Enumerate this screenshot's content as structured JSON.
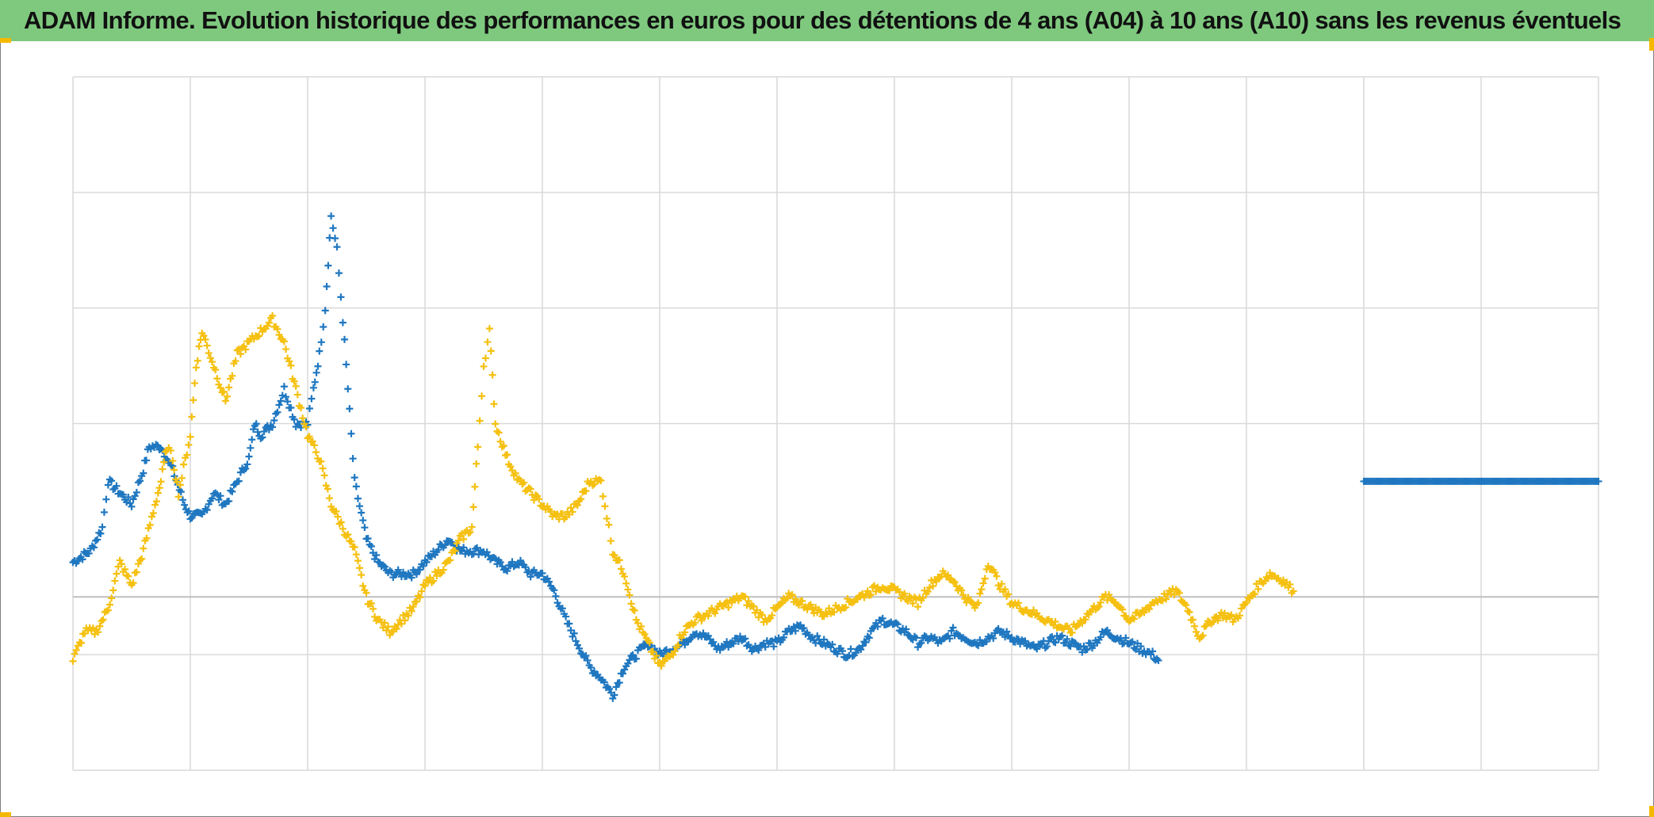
{
  "title": "ADAM Informe. Evolution historique des performances en euros pour des détentions de 4 ans (A04) à 10 ans (A10) sans les revenus éventuels",
  "colors": {
    "title_bar": "#7fc97f",
    "series_blue": "#1f77c0",
    "series_gold": "#f5c010",
    "grid": "#d9d9d9",
    "axis": "#bfbfbf"
  },
  "chart_data": {
    "type": "scatter",
    "title": "",
    "xlabel": "",
    "ylabel": "",
    "marker": "plus",
    "x_divisions": 13,
    "xlim": [
      0,
      13
    ],
    "ylim": [
      -1.5,
      4.5
    ],
    "y_gridlines": [
      -1.5,
      -0.5,
      0,
      1.5,
      2.5,
      3.5,
      4.5
    ],
    "grid": true,
    "legend": "none",
    "tick_labels": "none",
    "series": [
      {
        "color": "#1f77c0",
        "points": [
          [
            0.0,
            0.3
          ],
          [
            0.15,
            0.4
          ],
          [
            0.25,
            0.6
          ],
          [
            0.3,
            1.0
          ],
          [
            0.4,
            0.9
          ],
          [
            0.5,
            0.8
          ],
          [
            0.6,
            1.1
          ],
          [
            0.65,
            1.3
          ],
          [
            0.75,
            1.3
          ],
          [
            0.85,
            1.1
          ],
          [
            0.95,
            0.8
          ],
          [
            1.0,
            0.7
          ],
          [
            1.1,
            0.7
          ],
          [
            1.2,
            0.9
          ],
          [
            1.3,
            0.8
          ],
          [
            1.4,
            1.0
          ],
          [
            1.5,
            1.2
          ],
          [
            1.55,
            1.5
          ],
          [
            1.6,
            1.4
          ],
          [
            1.7,
            1.5
          ],
          [
            1.8,
            1.8
          ],
          [
            1.9,
            1.5
          ],
          [
            2.0,
            1.5
          ],
          [
            2.05,
            1.8
          ],
          [
            2.1,
            2.1
          ],
          [
            2.15,
            2.5
          ],
          [
            2.2,
            3.3
          ],
          [
            2.25,
            3.0
          ],
          [
            2.3,
            2.4
          ],
          [
            2.4,
            1.0
          ],
          [
            2.5,
            0.5
          ],
          [
            2.6,
            0.3
          ],
          [
            2.7,
            0.2
          ],
          [
            2.8,
            0.2
          ],
          [
            2.9,
            0.2
          ],
          [
            3.0,
            0.3
          ],
          [
            3.1,
            0.4
          ],
          [
            3.2,
            0.5
          ],
          [
            3.3,
            0.4
          ],
          [
            3.4,
            0.4
          ],
          [
            3.5,
            0.4
          ],
          [
            3.6,
            0.3
          ],
          [
            3.7,
            0.25
          ],
          [
            3.8,
            0.3
          ],
          [
            3.9,
            0.2
          ],
          [
            4.0,
            0.2
          ],
          [
            4.1,
            0.05
          ],
          [
            4.2,
            -0.2
          ],
          [
            4.3,
            -0.4
          ],
          [
            4.4,
            -0.6
          ],
          [
            4.5,
            -0.7
          ],
          [
            4.6,
            -0.85
          ],
          [
            4.7,
            -0.6
          ],
          [
            4.8,
            -0.5
          ],
          [
            4.9,
            -0.4
          ],
          [
            5.0,
            -0.5
          ],
          [
            5.1,
            -0.45
          ],
          [
            5.2,
            -0.4
          ],
          [
            5.3,
            -0.3
          ],
          [
            5.4,
            -0.35
          ],
          [
            5.5,
            -0.45
          ],
          [
            5.6,
            -0.4
          ],
          [
            5.7,
            -0.35
          ],
          [
            5.8,
            -0.45
          ],
          [
            5.9,
            -0.4
          ],
          [
            6.0,
            -0.4
          ],
          [
            6.1,
            -0.3
          ],
          [
            6.2,
            -0.25
          ],
          [
            6.3,
            -0.35
          ],
          [
            6.4,
            -0.4
          ],
          [
            6.5,
            -0.45
          ],
          [
            6.6,
            -0.5
          ],
          [
            6.7,
            -0.45
          ],
          [
            6.8,
            -0.3
          ],
          [
            6.9,
            -0.2
          ],
          [
            7.0,
            -0.25
          ],
          [
            7.1,
            -0.3
          ],
          [
            7.2,
            -0.4
          ],
          [
            7.3,
            -0.35
          ],
          [
            7.4,
            -0.4
          ],
          [
            7.5,
            -0.3
          ],
          [
            7.6,
            -0.35
          ],
          [
            7.7,
            -0.4
          ],
          [
            7.8,
            -0.35
          ],
          [
            7.9,
            -0.3
          ],
          [
            8.0,
            -0.35
          ],
          [
            8.1,
            -0.4
          ],
          [
            8.2,
            -0.45
          ],
          [
            8.3,
            -0.4
          ],
          [
            8.4,
            -0.35
          ],
          [
            8.5,
            -0.4
          ],
          [
            8.6,
            -0.45
          ],
          [
            8.7,
            -0.4
          ],
          [
            8.8,
            -0.3
          ],
          [
            8.9,
            -0.35
          ],
          [
            9.0,
            -0.4
          ],
          [
            9.1,
            -0.45
          ],
          [
            9.2,
            -0.5
          ],
          [
            9.25,
            -0.55
          ]
        ]
      },
      {
        "color": "#f5c010",
        "points": [
          [
            0.0,
            -0.55
          ],
          [
            0.1,
            -0.3
          ],
          [
            0.2,
            -0.3
          ],
          [
            0.3,
            -0.1
          ],
          [
            0.4,
            0.3
          ],
          [
            0.5,
            0.1
          ],
          [
            0.6,
            0.4
          ],
          [
            0.7,
            0.8
          ],
          [
            0.75,
            1.0
          ],
          [
            0.8,
            1.3
          ],
          [
            0.85,
            1.2
          ],
          [
            0.9,
            0.9
          ],
          [
            1.0,
            1.4
          ],
          [
            1.05,
            2.0
          ],
          [
            1.1,
            2.3
          ],
          [
            1.2,
            2.0
          ],
          [
            1.3,
            1.7
          ],
          [
            1.4,
            2.1
          ],
          [
            1.5,
            2.2
          ],
          [
            1.6,
            2.3
          ],
          [
            1.7,
            2.4
          ],
          [
            1.8,
            2.2
          ],
          [
            1.9,
            1.8
          ],
          [
            2.0,
            1.4
          ],
          [
            2.1,
            1.2
          ],
          [
            2.2,
            0.8
          ],
          [
            2.3,
            0.6
          ],
          [
            2.4,
            0.4
          ],
          [
            2.5,
            0.0
          ],
          [
            2.6,
            -0.2
          ],
          [
            2.7,
            -0.3
          ],
          [
            2.8,
            -0.2
          ],
          [
            2.9,
            -0.1
          ],
          [
            3.0,
            0.1
          ],
          [
            3.1,
            0.2
          ],
          [
            3.2,
            0.3
          ],
          [
            3.3,
            0.5
          ],
          [
            3.4,
            0.6
          ],
          [
            3.45,
            1.3
          ],
          [
            3.5,
            2.0
          ],
          [
            3.55,
            2.3
          ],
          [
            3.6,
            1.5
          ],
          [
            3.7,
            1.2
          ],
          [
            3.8,
            1.0
          ],
          [
            3.9,
            0.9
          ],
          [
            4.0,
            0.8
          ],
          [
            4.1,
            0.7
          ],
          [
            4.2,
            0.7
          ],
          [
            4.3,
            0.8
          ],
          [
            4.4,
            1.0
          ],
          [
            4.5,
            1.0
          ],
          [
            4.55,
            0.7
          ],
          [
            4.6,
            0.4
          ],
          [
            4.7,
            0.2
          ],
          [
            4.8,
            -0.2
          ],
          [
            4.9,
            -0.4
          ],
          [
            5.0,
            -0.6
          ],
          [
            5.1,
            -0.5
          ],
          [
            5.2,
            -0.3
          ],
          [
            5.3,
            -0.2
          ],
          [
            5.4,
            -0.15
          ],
          [
            5.5,
            -0.1
          ],
          [
            5.6,
            -0.05
          ],
          [
            5.7,
            0.0
          ],
          [
            5.8,
            -0.1
          ],
          [
            5.9,
            -0.2
          ],
          [
            6.0,
            -0.1
          ],
          [
            6.1,
            0.0
          ],
          [
            6.2,
            -0.05
          ],
          [
            6.3,
            -0.1
          ],
          [
            6.4,
            -0.15
          ],
          [
            6.5,
            -0.1
          ],
          [
            6.6,
            -0.05
          ],
          [
            6.7,
            0.0
          ],
          [
            6.8,
            0.05
          ],
          [
            6.9,
            0.1
          ],
          [
            7.0,
            0.05
          ],
          [
            7.1,
            0.0
          ],
          [
            7.2,
            -0.05
          ],
          [
            7.3,
            0.1
          ],
          [
            7.4,
            0.2
          ],
          [
            7.5,
            0.15
          ],
          [
            7.6,
            0.0
          ],
          [
            7.7,
            -0.1
          ],
          [
            7.8,
            0.3
          ],
          [
            7.9,
            0.1
          ],
          [
            8.0,
            -0.05
          ],
          [
            8.1,
            -0.1
          ],
          [
            8.2,
            -0.15
          ],
          [
            8.3,
            -0.2
          ],
          [
            8.4,
            -0.25
          ],
          [
            8.5,
            -0.3
          ],
          [
            8.6,
            -0.2
          ],
          [
            8.7,
            -0.1
          ],
          [
            8.8,
            0.0
          ],
          [
            8.9,
            -0.05
          ],
          [
            9.0,
            -0.2
          ],
          [
            9.1,
            -0.15
          ],
          [
            9.2,
            -0.05
          ],
          [
            9.3,
            0.0
          ],
          [
            9.4,
            0.05
          ],
          [
            9.5,
            -0.1
          ],
          [
            9.6,
            -0.35
          ],
          [
            9.7,
            -0.2
          ],
          [
            9.8,
            -0.15
          ],
          [
            9.9,
            -0.2
          ],
          [
            10.0,
            -0.05
          ],
          [
            10.1,
            0.1
          ],
          [
            10.2,
            0.2
          ],
          [
            10.3,
            0.15
          ],
          [
            10.4,
            0.05
          ]
        ]
      },
      {
        "color": "#1f77c0",
        "points": [
          [
            11.0,
            1.0
          ],
          [
            11.25,
            1.0
          ],
          [
            11.5,
            1.0
          ],
          [
            11.75,
            1.0
          ],
          [
            12.0,
            1.0
          ],
          [
            12.25,
            1.0
          ],
          [
            12.5,
            1.0
          ],
          [
            12.75,
            1.0
          ],
          [
            13.0,
            1.0
          ]
        ]
      }
    ]
  }
}
